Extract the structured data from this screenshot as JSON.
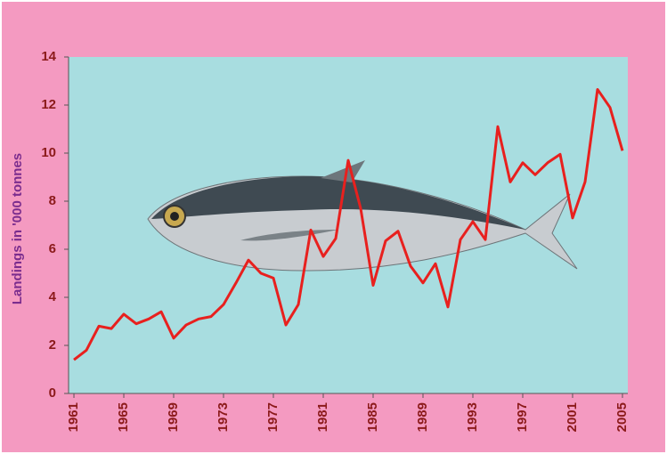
{
  "chart_data": {
    "type": "line",
    "y_label": "Landings in '000 tonnes",
    "x": [
      1961,
      1962,
      1963,
      1964,
      1965,
      1966,
      1967,
      1968,
      1969,
      1970,
      1971,
      1972,
      1973,
      1974,
      1975,
      1976,
      1977,
      1978,
      1979,
      1980,
      1981,
      1982,
      1983,
      1984,
      1985,
      1986,
      1987,
      1988,
      1989,
      1990,
      1991,
      1992,
      1993,
      1994,
      1995,
      1996,
      1997,
      1998,
      1999,
      2000,
      2001,
      2002,
      2003,
      2004,
      2005
    ],
    "series": [
      {
        "color": "#e8201e",
        "values": [
          1.4,
          1.8,
          2.8,
          2.7,
          3.3,
          2.9,
          3.1,
          3.4,
          2.3,
          2.85,
          3.1,
          3.2,
          3.7,
          4.6,
          5.55,
          5.0,
          4.8,
          2.85,
          3.7,
          6.8,
          5.7,
          6.45,
          9.7,
          7.7,
          4.5,
          6.35,
          6.75,
          5.3,
          4.6,
          5.4,
          3.6,
          6.4,
          7.15,
          6.4,
          11.1,
          8.8,
          9.6,
          9.1,
          9.6,
          9.95,
          7.3,
          8.8,
          12.65,
          11.9,
          10.1
        ]
      }
    ],
    "xlim": [
      1960.57,
      2005.43
    ],
    "xticks": [
      1961,
      1965,
      1969,
      1973,
      1977,
      1981,
      1985,
      1989,
      1993,
      1997,
      2001,
      2005
    ],
    "ylim": [
      0,
      14
    ],
    "yticks": [
      0,
      2,
      4,
      6,
      8,
      10,
      12,
      14
    ]
  }
}
